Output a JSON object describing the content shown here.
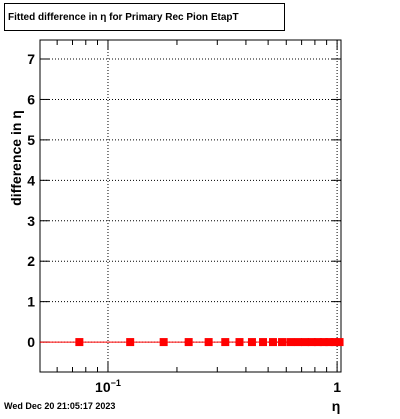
{
  "chart_data": {
    "type": "scatter",
    "title": "Fitted difference in  η for Primary Rec Pion EtapT",
    "x_label": "η",
    "y_label": "difference in  η",
    "footer": "Wed Dec 20 21:05:17 2023",
    "x": [
      0.075,
      0.125,
      0.175,
      0.225,
      0.275,
      0.325,
      0.375,
      0.425,
      0.475,
      0.525,
      0.575,
      0.625,
      0.675,
      0.725,
      0.775,
      0.825,
      0.875,
      0.925,
      0.975,
      1.025
    ],
    "values": [
      0,
      0,
      0,
      0,
      0,
      0,
      0,
      0,
      0,
      0,
      0,
      0,
      0,
      0,
      0,
      0,
      0,
      0,
      0,
      0
    ],
    "xerr": 0.025,
    "color": "#ff0000",
    "xlog": true,
    "xlim": [
      0.0505,
      1.04
    ],
    "ylim": [
      -0.74,
      7.47
    ],
    "xticks": [
      {
        "value": 0.1,
        "label": "10",
        "label_exponent": "−1"
      },
      1
    ],
    "xminor": [
      0.06,
      0.07,
      0.08,
      0.09,
      0.2,
      0.3,
      0.4,
      0.5,
      0.6,
      0.7,
      0.8,
      0.9
    ],
    "yticks": [
      0,
      1,
      2,
      3,
      4,
      5,
      6,
      7
    ],
    "grid": true
  }
}
